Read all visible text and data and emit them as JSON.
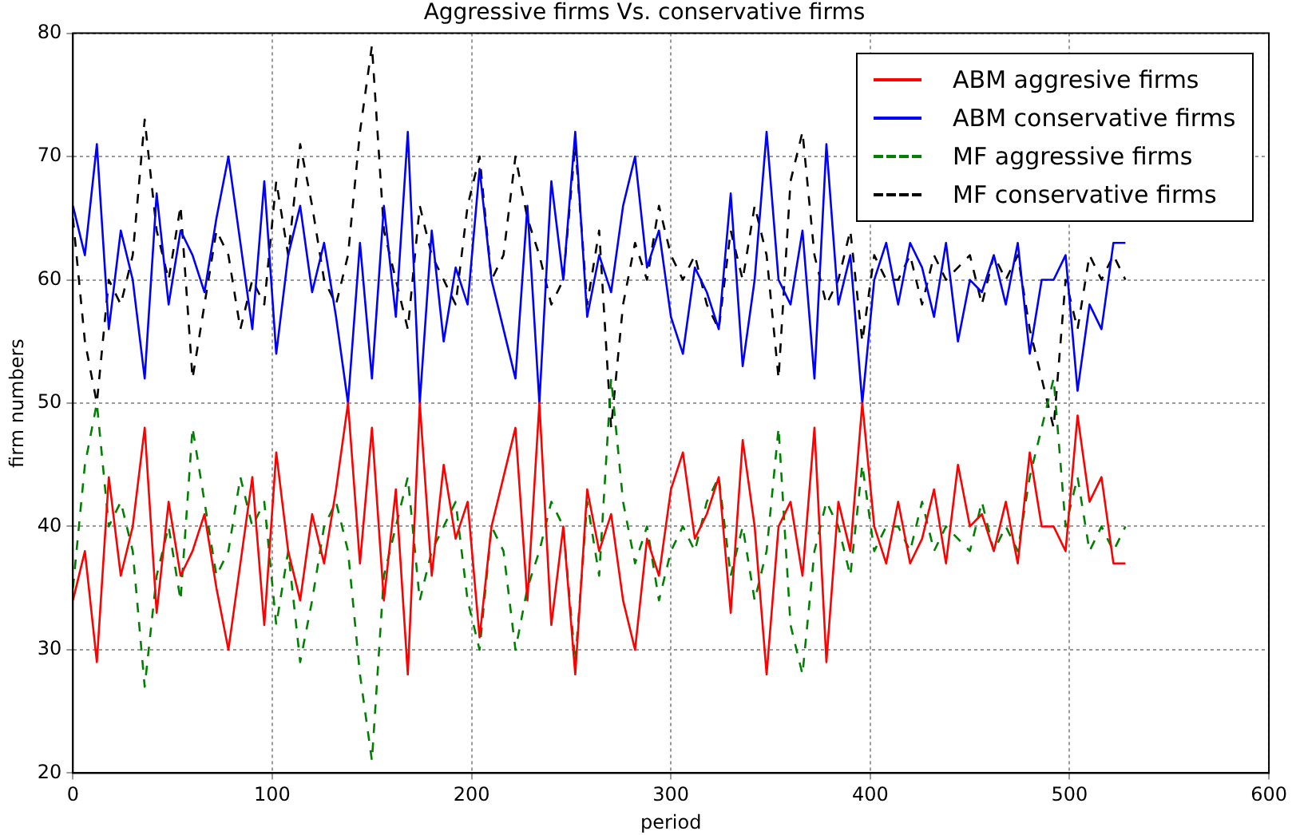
{
  "chart_data": {
    "type": "line",
    "title": "Aggressive firms Vs. conservative firms",
    "xlabel": "period",
    "ylabel": "firm numbers",
    "x": [
      0,
      6,
      12,
      18,
      24,
      30,
      36,
      42,
      48,
      54,
      60,
      66,
      72,
      78,
      84,
      90,
      96,
      102,
      108,
      114,
      120,
      126,
      132,
      138,
      144,
      150,
      156,
      162,
      168,
      174,
      180,
      186,
      192,
      198,
      204,
      210,
      216,
      222,
      228,
      234,
      240,
      246,
      252,
      258,
      264,
      270,
      276,
      282,
      288,
      294,
      300,
      306,
      312,
      318,
      324,
      330,
      336,
      342,
      348,
      354,
      360,
      366,
      372,
      378,
      384,
      390,
      396,
      402,
      408,
      414,
      420,
      426,
      432,
      438,
      444,
      450,
      456,
      462,
      468,
      474,
      480,
      486,
      492,
      498,
      504,
      510,
      516,
      522,
      528
    ],
    "series": [
      {
        "name": "ABM aggresive firms",
        "color": "#ff0000",
        "line_style": "solid",
        "values": [
          34,
          38,
          29,
          44,
          36,
          40,
          48,
          33,
          42,
          36,
          38,
          41,
          35,
          30,
          37,
          44,
          32,
          46,
          38,
          34,
          41,
          37,
          43,
          50,
          37,
          48,
          34,
          43,
          28,
          50,
          36,
          45,
          39,
          42,
          31,
          40,
          44,
          48,
          34,
          50,
          32,
          40,
          28,
          43,
          38,
          41,
          34,
          30,
          39,
          36,
          43,
          46,
          39,
          41,
          44,
          33,
          47,
          40,
          28,
          40,
          42,
          36,
          48,
          29,
          42,
          38,
          50,
          40,
          37,
          42,
          37,
          39,
          43,
          37,
          45,
          40,
          41,
          38,
          42,
          37,
          46,
          40,
          40,
          38,
          49,
          42,
          44,
          37,
          37
        ]
      },
      {
        "name": "ABM conservative firms",
        "color": "#0000ff",
        "line_style": "solid",
        "values": [
          66,
          62,
          71,
          56,
          64,
          60,
          52,
          67,
          58,
          64,
          62,
          59,
          65,
          70,
          63,
          56,
          68,
          54,
          62,
          66,
          59,
          63,
          57,
          50,
          63,
          52,
          66,
          57,
          72,
          50,
          64,
          55,
          61,
          58,
          69,
          60,
          56,
          52,
          66,
          50,
          68,
          60,
          72,
          57,
          62,
          59,
          66,
          70,
          61,
          64,
          57,
          54,
          61,
          59,
          56,
          67,
          53,
          60,
          72,
          60,
          58,
          64,
          52,
          71,
          58,
          62,
          50,
          60,
          63,
          58,
          63,
          61,
          57,
          63,
          55,
          60,
          59,
          62,
          58,
          63,
          54,
          60,
          60,
          62,
          51,
          58,
          56,
          63,
          63
        ]
      },
      {
        "name": "MF aggressive firms",
        "color": "#008000",
        "line_style": "dashed",
        "values": [
          35,
          45,
          50,
          40,
          42,
          38,
          27,
          36,
          40,
          34,
          48,
          42,
          36,
          38,
          44,
          40,
          42,
          32,
          38,
          29,
          34,
          40,
          42,
          38,
          28,
          21,
          36,
          40,
          44,
          34,
          38,
          40,
          42,
          34,
          30,
          40,
          38,
          30,
          35,
          38,
          42,
          40,
          29,
          42,
          36,
          52,
          42,
          37,
          40,
          34,
          38,
          40,
          38,
          42,
          44,
          36,
          40,
          34,
          38,
          48,
          32,
          28,
          38,
          42,
          40,
          36,
          45,
          38,
          40,
          40,
          38,
          42,
          38,
          40,
          39,
          38,
          42,
          38,
          40,
          38,
          44,
          48,
          52,
          40,
          44,
          38,
          40,
          38,
          40
        ]
      },
      {
        "name": "MF conservative firms",
        "color": "#000000",
        "line_style": "dashed",
        "values": [
          65,
          55,
          50,
          60,
          58,
          62,
          73,
          64,
          60,
          66,
          52,
          58,
          64,
          62,
          56,
          60,
          58,
          68,
          62,
          71,
          66,
          60,
          58,
          62,
          72,
          79,
          64,
          60,
          56,
          66,
          62,
          60,
          58,
          66,
          70,
          60,
          62,
          70,
          65,
          62,
          58,
          60,
          71,
          58,
          64,
          48,
          58,
          63,
          60,
          66,
          62,
          60,
          62,
          58,
          56,
          64,
          60,
          66,
          62,
          52,
          68,
          72,
          62,
          58,
          60,
          64,
          55,
          62,
          60,
          60,
          62,
          58,
          62,
          60,
          61,
          62,
          58,
          62,
          60,
          62,
          56,
          52,
          48,
          60,
          56,
          62,
          60,
          62,
          60
        ]
      }
    ],
    "xlim": [
      0,
      600
    ],
    "xticks": [
      0,
      100,
      200,
      300,
      400,
      500,
      600
    ],
    "ylim": [
      20,
      80
    ],
    "yticks": [
      20,
      30,
      40,
      50,
      60,
      70,
      80
    ],
    "grid": true,
    "legend": "top right"
  }
}
